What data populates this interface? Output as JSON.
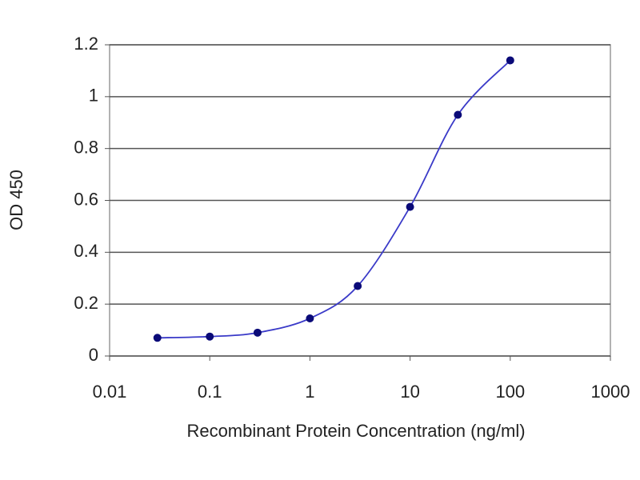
{
  "chart_data": {
    "type": "line",
    "xlabel": "Recombinant Protein Concentration (ng/ml)",
    "ylabel": "OD 450",
    "x": [
      0.03,
      0.1,
      0.3,
      1,
      3,
      10,
      30,
      100
    ],
    "values": [
      0.07,
      0.075,
      0.09,
      0.145,
      0.27,
      0.575,
      0.93,
      1.14
    ],
    "color": "#3a3ac8",
    "marker_color": "#0a0a78",
    "xscale": "log",
    "xlim": [
      0.01,
      1000
    ],
    "xticks": [
      0.01,
      0.1,
      1,
      10,
      100,
      1000
    ],
    "ylim": [
      0,
      1.2
    ],
    "yticks": [
      0,
      0.2,
      0.4,
      0.6,
      0.8,
      1,
      1.2
    ],
    "grid": true
  }
}
